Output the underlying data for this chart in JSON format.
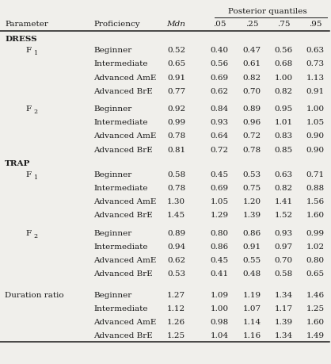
{
  "header_top": "Posterior quantiles",
  "col_headers": [
    "Parameter",
    "Proficiency",
    "Mdn",
    ".05",
    ".25",
    ".75",
    ".95"
  ],
  "rows": [
    {
      "type": "section",
      "label": "DRESS"
    },
    {
      "type": "param_start",
      "param": "F",
      "sub": "1",
      "proficiency": "Beginner",
      "values": [
        "0.52",
        "0.40",
        "0.47",
        "0.56",
        "0.63"
      ]
    },
    {
      "type": "param_cont",
      "proficiency": "Intermediate",
      "values": [
        "0.65",
        "0.56",
        "0.61",
        "0.68",
        "0.73"
      ]
    },
    {
      "type": "param_cont",
      "proficiency": "Advanced AmE",
      "values": [
        "0.91",
        "0.69",
        "0.82",
        "1.00",
        "1.13"
      ]
    },
    {
      "type": "param_cont",
      "proficiency": "Advanced BrE",
      "values": [
        "0.77",
        "0.62",
        "0.70",
        "0.82",
        "0.91"
      ]
    },
    {
      "type": "param_gap"
    },
    {
      "type": "param_start",
      "param": "F",
      "sub": "2",
      "proficiency": "Beginner",
      "values": [
        "0.92",
        "0.84",
        "0.89",
        "0.95",
        "1.00"
      ]
    },
    {
      "type": "param_cont",
      "proficiency": "Intermediate",
      "values": [
        "0.99",
        "0.93",
        "0.96",
        "1.01",
        "1.05"
      ]
    },
    {
      "type": "param_cont",
      "proficiency": "Advanced AmE",
      "values": [
        "0.78",
        "0.64",
        "0.72",
        "0.83",
        "0.90"
      ]
    },
    {
      "type": "param_cont",
      "proficiency": "Advanced BrE",
      "values": [
        "0.81",
        "0.72",
        "0.78",
        "0.85",
        "0.90"
      ]
    },
    {
      "type": "section",
      "label": "TRAP"
    },
    {
      "type": "param_start",
      "param": "F",
      "sub": "1",
      "proficiency": "Beginner",
      "values": [
        "0.58",
        "0.45",
        "0.53",
        "0.63",
        "0.71"
      ]
    },
    {
      "type": "param_cont",
      "proficiency": "Intermediate",
      "values": [
        "0.78",
        "0.69",
        "0.75",
        "0.82",
        "0.88"
      ]
    },
    {
      "type": "param_cont",
      "proficiency": "Advanced AmE",
      "values": [
        "1.30",
        "1.05",
        "1.20",
        "1.41",
        "1.56"
      ]
    },
    {
      "type": "param_cont",
      "proficiency": "Advanced BrE",
      "values": [
        "1.45",
        "1.29",
        "1.39",
        "1.52",
        "1.60"
      ]
    },
    {
      "type": "param_gap"
    },
    {
      "type": "param_start",
      "param": "F",
      "sub": "2",
      "proficiency": "Beginner",
      "values": [
        "0.89",
        "0.80",
        "0.86",
        "0.93",
        "0.99"
      ]
    },
    {
      "type": "param_cont",
      "proficiency": "Intermediate",
      "values": [
        "0.94",
        "0.86",
        "0.91",
        "0.97",
        "1.02"
      ]
    },
    {
      "type": "param_cont",
      "proficiency": "Advanced AmE",
      "values": [
        "0.62",
        "0.45",
        "0.55",
        "0.70",
        "0.80"
      ]
    },
    {
      "type": "param_cont",
      "proficiency": "Advanced BrE",
      "values": [
        "0.53",
        "0.41",
        "0.48",
        "0.58",
        "0.65"
      ]
    },
    {
      "type": "section_gap"
    },
    {
      "type": "param_start",
      "param": "Duration ratio",
      "sub": null,
      "proficiency": "Beginner",
      "values": [
        "1.27",
        "1.09",
        "1.19",
        "1.34",
        "1.46"
      ]
    },
    {
      "type": "param_cont",
      "proficiency": "Intermediate",
      "values": [
        "1.12",
        "1.00",
        "1.07",
        "1.17",
        "1.25"
      ]
    },
    {
      "type": "param_cont",
      "proficiency": "Advanced AmE",
      "values": [
        "1.26",
        "0.98",
        "1.14",
        "1.39",
        "1.60"
      ]
    },
    {
      "type": "param_cont",
      "proficiency": "Advanced BrE",
      "values": [
        "1.25",
        "1.04",
        "1.16",
        "1.34",
        "1.49"
      ]
    }
  ],
  "bg_color": "#f0efeb",
  "text_color": "#1a1a1a",
  "font_size": 7.5
}
